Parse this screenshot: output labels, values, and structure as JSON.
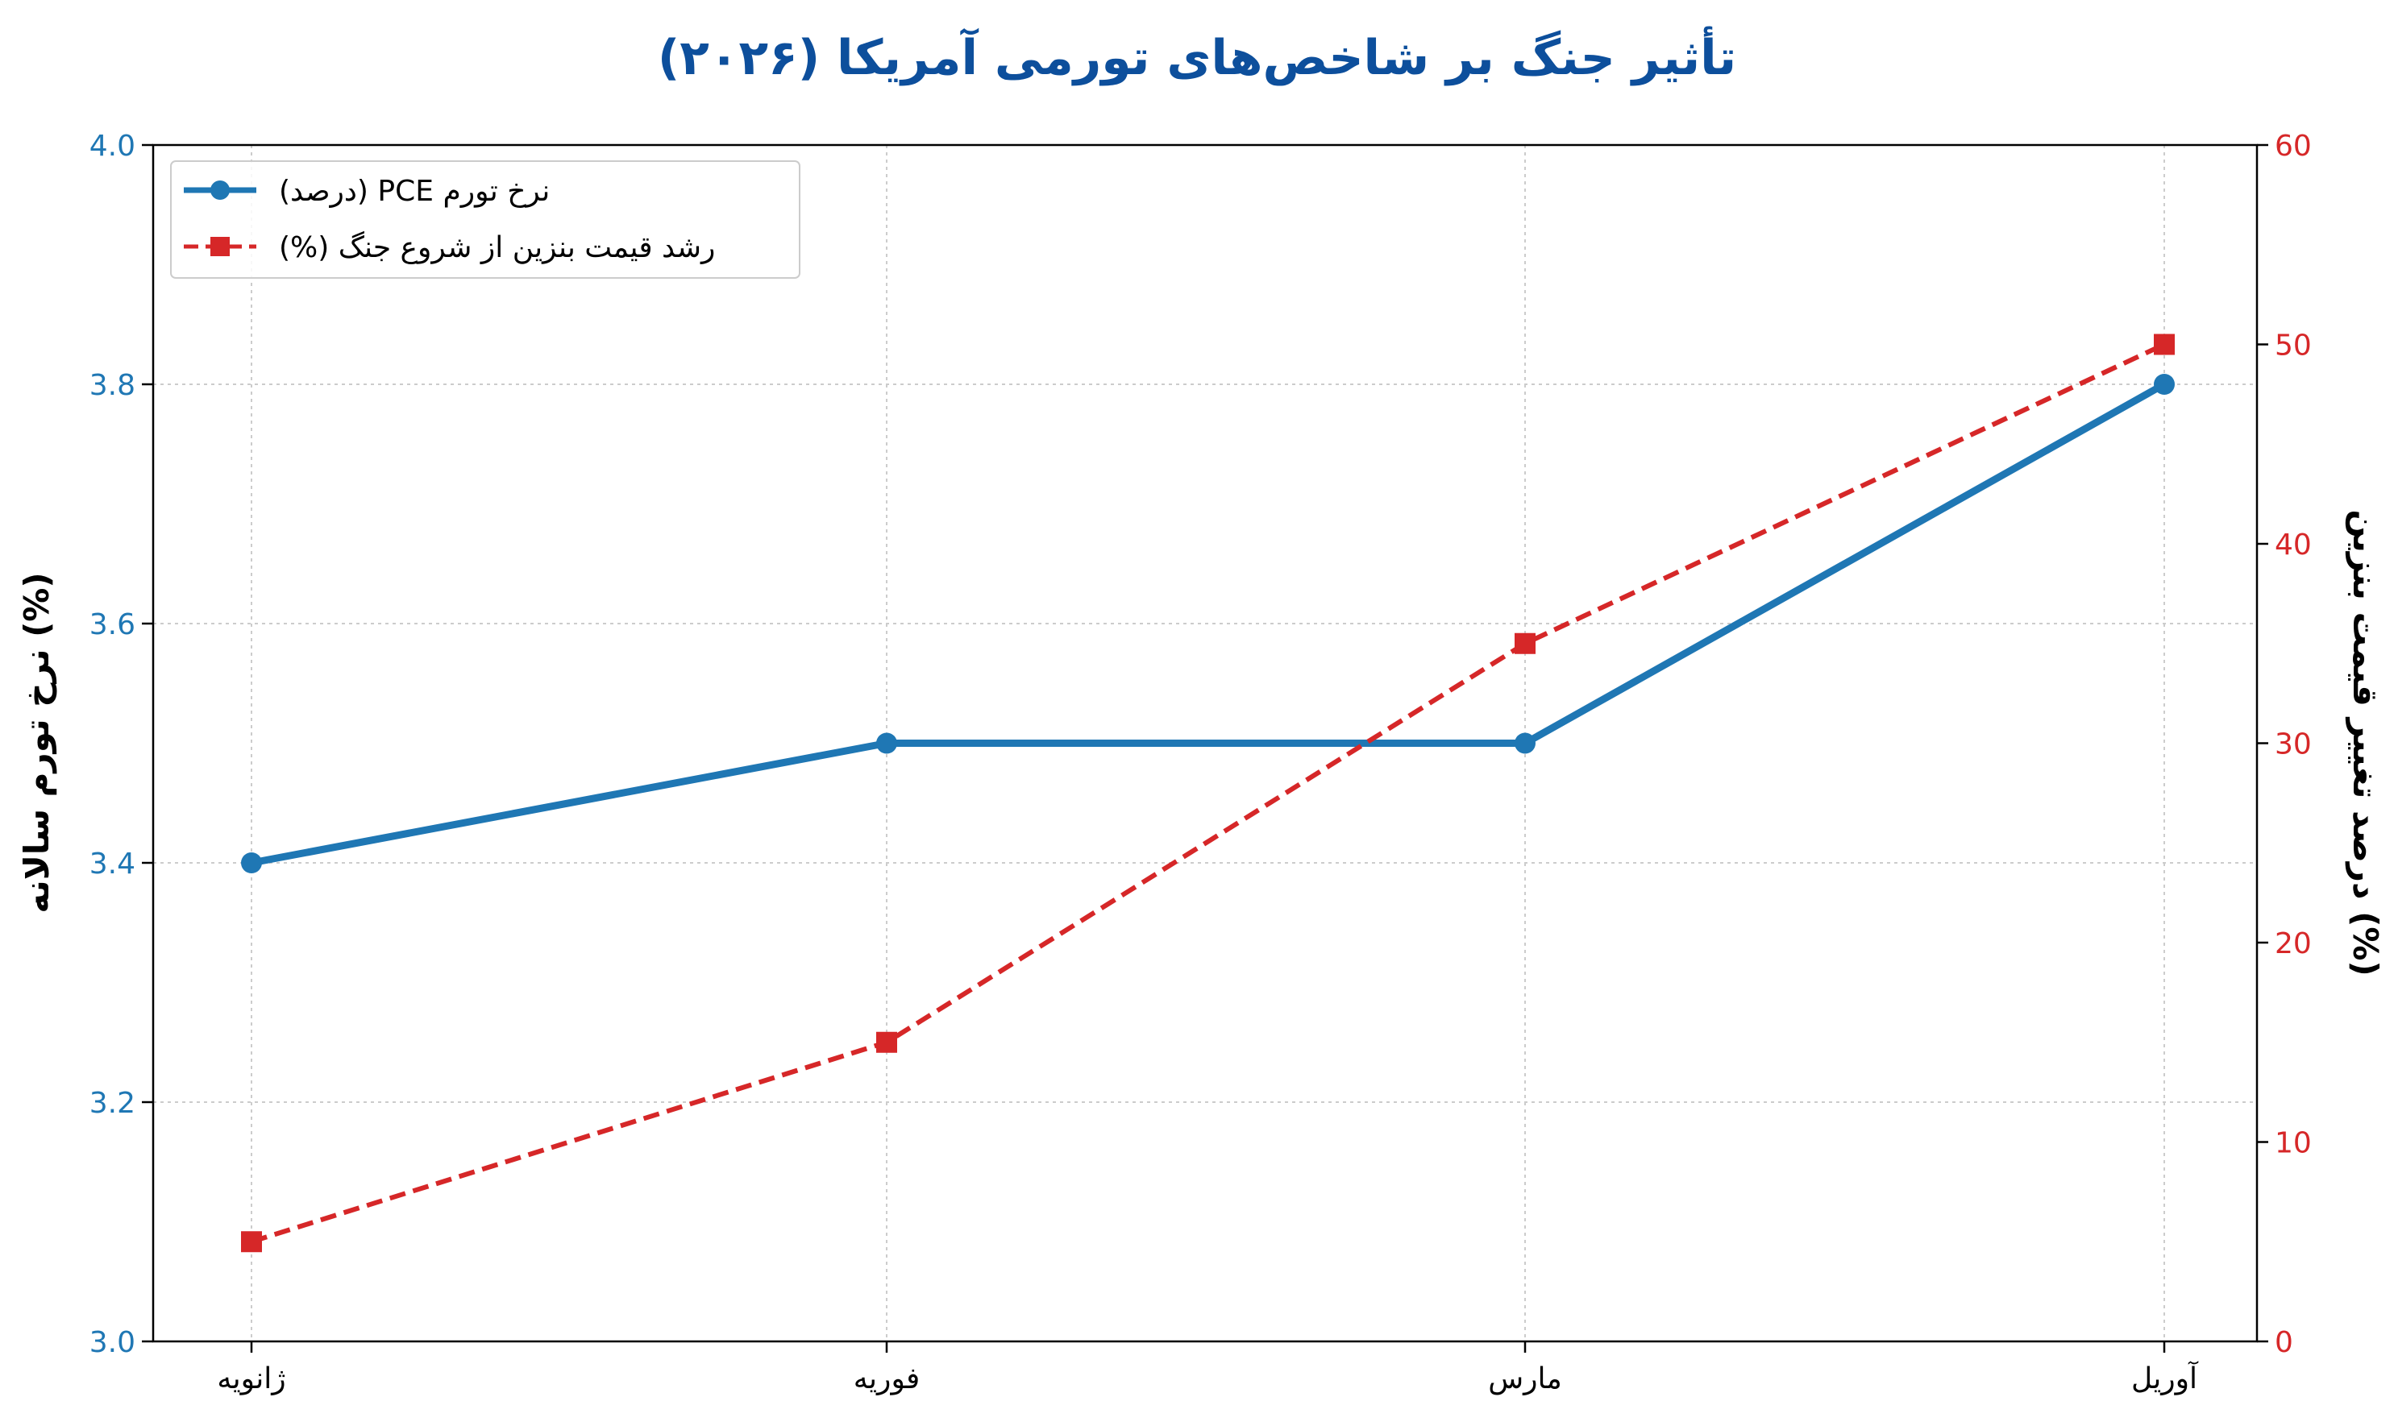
{
  "chart_data": {
    "type": "line",
    "title": "تأثیر جنگ بر شاخص‌های تورمی آمریکا (۲۰۲۶)",
    "categories": [
      "ژانویه",
      "فوریه",
      "مارس",
      "آوریل"
    ],
    "ylabel_left": "نرخ تورم سالانه (%)",
    "ylabel_right": "درصد تغییر قیمت بنزین (%)",
    "ylim_left": [
      3.0,
      4.0
    ],
    "yticks_left": [
      "3.0",
      "3.2",
      "3.4",
      "3.6",
      "3.8",
      "4.0"
    ],
    "ylim_right": [
      0,
      60
    ],
    "yticks_right": [
      "0",
      "10",
      "20",
      "30",
      "40",
      "50",
      "60"
    ],
    "grid": true,
    "legend_position": "top-left",
    "series": [
      {
        "name": "نرخ تورم PCE (درصد)",
        "axis": "left",
        "values": [
          3.4,
          3.5,
          3.5,
          3.8
        ],
        "color": "#1f77b4",
        "style": "solid",
        "marker": "circle"
      },
      {
        "name": "رشد قیمت بنزین از شروع جنگ (%)",
        "axis": "right",
        "values": [
          5,
          15,
          35,
          50
        ],
        "color": "#d62728",
        "style": "dashed",
        "marker": "square"
      }
    ],
    "colors": {
      "title": "#0d4f9c",
      "left_axis": "#1f77b4",
      "right_axis": "#d62728"
    }
  }
}
